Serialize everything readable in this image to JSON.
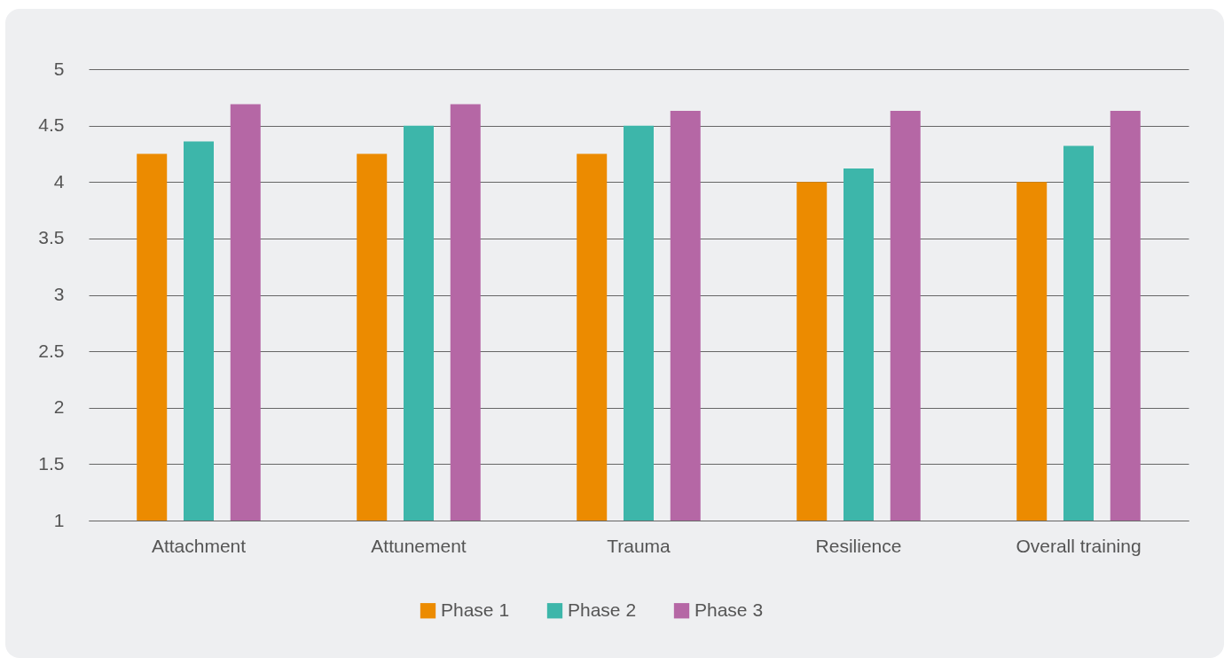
{
  "chart_data": {
    "type": "bar",
    "categories": [
      "Attachment",
      "Attunement",
      "Trauma",
      "Resilience",
      "Overall training"
    ],
    "series": [
      {
        "name": "Phase 1",
        "color": "#ec8b00",
        "values": [
          4.25,
          4.25,
          4.25,
          4.0,
          4.0
        ]
      },
      {
        "name": "Phase 2",
        "color": "#3db6aa",
        "values": [
          4.36,
          4.5,
          4.5,
          4.12,
          4.32
        ]
      },
      {
        "name": "Phase 3",
        "color": "#b567a5",
        "values": [
          4.69,
          4.69,
          4.63,
          4.63,
          4.63
        ]
      }
    ],
    "ylim": [
      1,
      5
    ],
    "yticks": [
      1,
      1.5,
      2,
      2.5,
      3,
      3.5,
      4,
      4.5,
      5
    ],
    "grid": "y",
    "legend": "bottom"
  }
}
